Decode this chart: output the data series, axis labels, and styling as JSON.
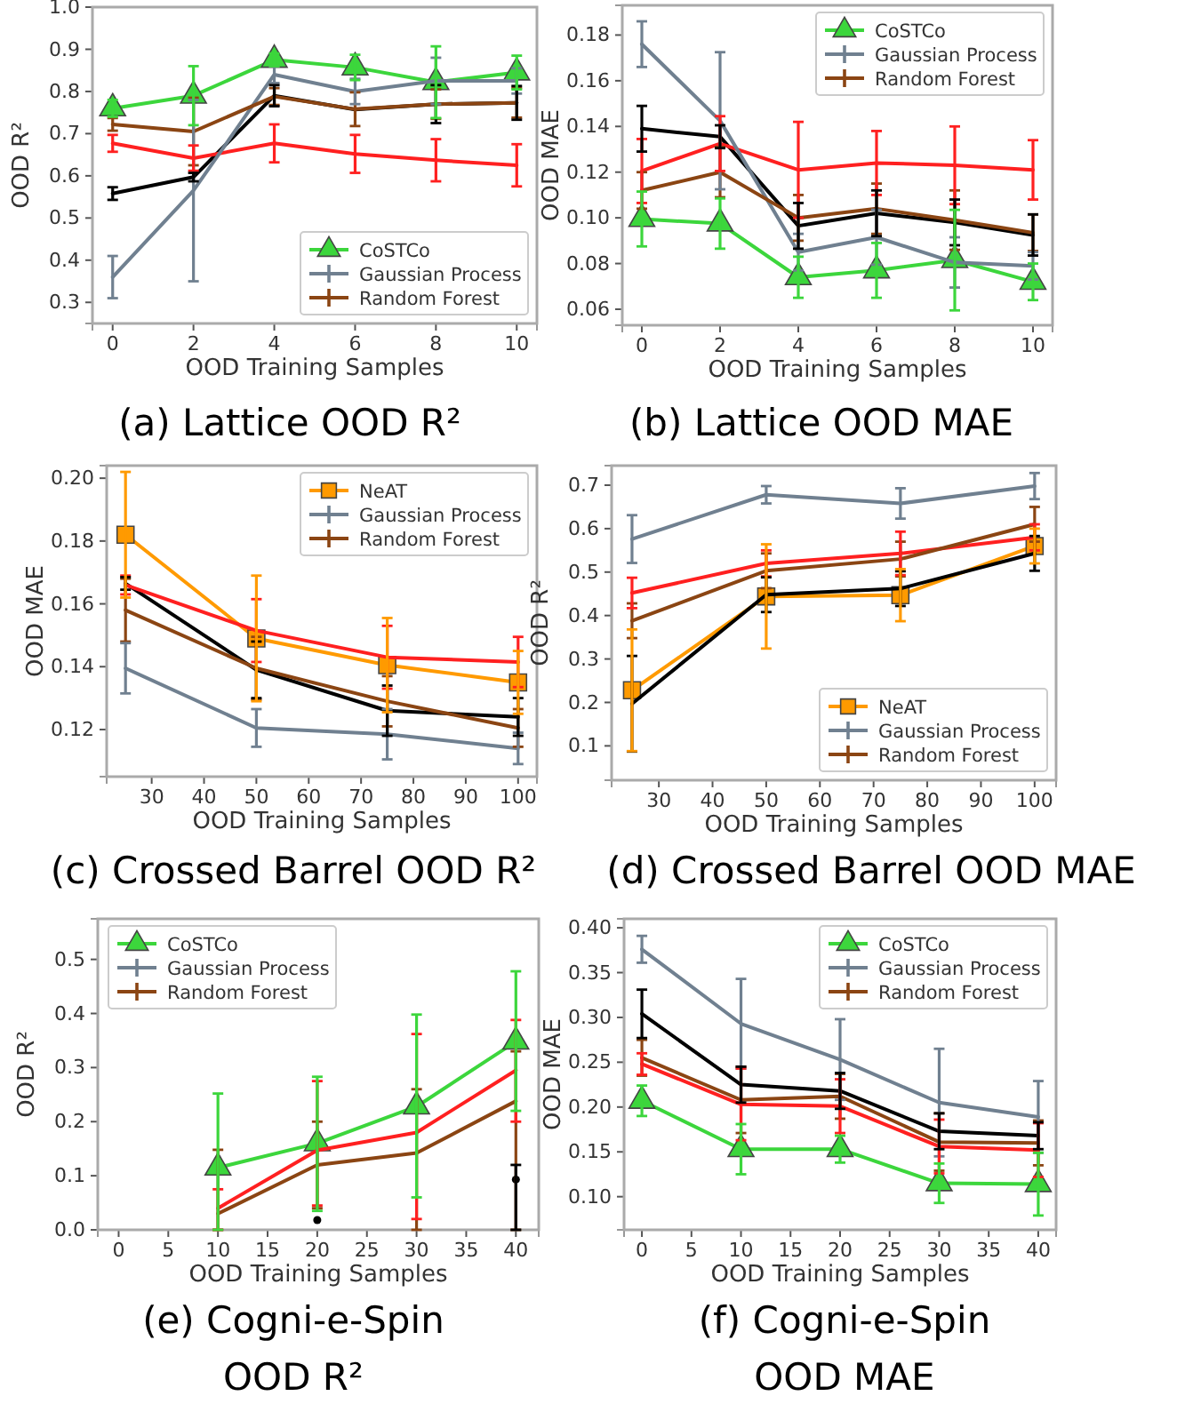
{
  "chart_data": [
    {
      "type": "line",
      "title": "(a) Lattice OOD R²",
      "xlabel": "OOD Training Samples",
      "ylabel": "OOD R²",
      "x": [
        0,
        2,
        4,
        6,
        8,
        10
      ],
      "xlim": [
        -0.5,
        10.5
      ],
      "xticks": [
        0,
        2,
        4,
        6,
        8,
        10
      ],
      "ylim": [
        0.25,
        1.0
      ],
      "yticks": [
        {
          "value": 0.3,
          "label": "0.3"
        },
        {
          "value": 0.4,
          "label": "0.4"
        },
        {
          "value": 0.5,
          "label": "0.5"
        },
        {
          "value": 0.6,
          "label": "0.6"
        },
        {
          "value": 0.7,
          "label": "0.7"
        },
        {
          "value": 0.8,
          "label": "0.8"
        },
        {
          "value": 0.9,
          "label": "0.9"
        },
        {
          "value": 1.0,
          "label": "1.0"
        }
      ],
      "legend": "lower right",
      "series": [
        {
          "name": "CoSTCo",
          "color": "#3cd63c",
          "marker": "triangle",
          "values": [
            0.76,
            0.79,
            0.875,
            0.857,
            0.822,
            0.845
          ],
          "errors": [
            0.02,
            0.07,
            0.015,
            0.03,
            0.085,
            0.04
          ]
        },
        {
          "color": "#000000",
          "marker": "none",
          "values": [
            0.558,
            0.597,
            0.79,
            0.757,
            0.77,
            0.773
          ],
          "errors": [
            0.015,
            0.01,
            0.025,
            null,
            0.045,
            0.04
          ]
        },
        {
          "color": "#ff2020",
          "marker": "none",
          "values": [
            0.677,
            0.642,
            0.677,
            0.652,
            0.637,
            0.625
          ],
          "errors": [
            0.02,
            0.03,
            0.045,
            0.045,
            0.05,
            0.05
          ]
        },
        {
          "name": "Gaussian Process",
          "color": "#708090",
          "marker": "none",
          "values": [
            0.36,
            0.565,
            0.84,
            0.8,
            0.825,
            0.825
          ],
          "errors": [
            0.05,
            0.215,
            0.02,
            0.03,
            0.055,
            0.03
          ]
        },
        {
          "name": "Random Forest",
          "color": "#8b4513",
          "marker": "none",
          "values": [
            0.722,
            0.705,
            0.788,
            0.758,
            0.77,
            0.773
          ],
          "errors": [
            0.015,
            0.08,
            0.02,
            0.04,
            0.035,
            0.035
          ]
        }
      ]
    },
    {
      "type": "line",
      "title": "(b) Lattice OOD MAE",
      "xlabel": "OOD Training Samples",
      "ylabel": "OOD MAE",
      "x": [
        0,
        2,
        4,
        6,
        8,
        10
      ],
      "xlim": [
        -0.5,
        10.5
      ],
      "xticks": [
        0,
        2,
        4,
        6,
        8,
        10
      ],
      "ylim": [
        0.053,
        0.193
      ],
      "yticks": [
        {
          "value": 0.06,
          "label": "0.06"
        },
        {
          "value": 0.08,
          "label": "0.08"
        },
        {
          "value": 0.1,
          "label": "0.10"
        },
        {
          "value": 0.12,
          "label": "0.12"
        },
        {
          "value": 0.14,
          "label": "0.14"
        },
        {
          "value": 0.16,
          "label": "0.16"
        },
        {
          "value": 0.18,
          "label": "0.18"
        }
      ],
      "legend": "top right",
      "series": [
        {
          "name": "CoSTCo",
          "color": "#3cd63c",
          "marker": "triangle",
          "values": [
            0.0995,
            0.0975,
            0.074,
            0.077,
            0.0815,
            0.072
          ],
          "errors": [
            0.012,
            0.011,
            0.009,
            0.012,
            0.022,
            0.008
          ]
        },
        {
          "color": "#000000",
          "marker": "none",
          "values": [
            0.139,
            0.1355,
            0.0965,
            0.102,
            0.098,
            0.0925
          ],
          "errors": [
            0.01,
            0.005,
            0.01,
            0.01,
            0.01,
            0.009
          ]
        },
        {
          "color": "#ff2020",
          "marker": "none",
          "values": [
            0.1205,
            0.1325,
            0.121,
            0.124,
            0.123,
            0.121
          ],
          "errors": [
            0.014,
            0.012,
            0.021,
            0.014,
            0.017,
            0.013
          ]
        },
        {
          "name": "Gaussian Process",
          "color": "#708090",
          "marker": "none",
          "values": [
            0.176,
            0.1425,
            0.085,
            0.0915,
            0.0805,
            0.079
          ],
          "errors": [
            0.01,
            0.03,
            0.008,
            0.012,
            0.011,
            0.006
          ]
        },
        {
          "name": "Random Forest",
          "color": "#8b4513",
          "marker": "none",
          "values": [
            0.112,
            0.12,
            0.1,
            0.104,
            0.099,
            0.0935
          ],
          "errors": [
            0.008,
            0.011,
            0.01,
            0.011,
            0.013,
            0.008
          ]
        }
      ]
    },
    {
      "type": "line",
      "title": "(c) Crossed Barrel OOD R²",
      "xlabel": "OOD Training Samples",
      "ylabel": "OOD MAE",
      "x": [
        25,
        50,
        75,
        100
      ],
      "xlim": [
        21.4,
        103.6
      ],
      "xticks": [
        30,
        40,
        50,
        60,
        70,
        80,
        90,
        100
      ],
      "ylim": [
        0.105,
        0.204
      ],
      "yticks": [
        {
          "value": 0.12,
          "label": "0.12"
        },
        {
          "value": 0.14,
          "label": "0.14"
        },
        {
          "value": 0.16,
          "label": "0.16"
        },
        {
          "value": 0.18,
          "label": "0.18"
        },
        {
          "value": 0.2,
          "label": "0.20"
        }
      ],
      "legend": "top right",
      "series": [
        {
          "name": "NeAT",
          "color": "#ff9a00",
          "marker": "square",
          "values": [
            0.182,
            0.149,
            0.1405,
            0.135
          ],
          "errors": [
            0.02,
            0.02,
            0.015,
            0.01
          ]
        },
        {
          "color": "#000000",
          "marker": "none",
          "values": [
            0.1665,
            0.139,
            0.126,
            0.124
          ],
          "errors": [
            0.002,
            0.009,
            0.008,
            0.006
          ]
        },
        {
          "color": "#ff2020",
          "marker": "none",
          "values": [
            0.166,
            0.1515,
            0.143,
            0.1415
          ],
          "errors": [
            0.003,
            0.01,
            0.01,
            0.008
          ]
        },
        {
          "name": "Gaussian Process",
          "color": "#708090",
          "marker": "none",
          "values": [
            0.1395,
            0.1205,
            0.1185,
            0.114
          ],
          "errors": [
            0.008,
            0.006,
            0.008,
            0.005
          ]
        },
        {
          "name": "Random Forest",
          "color": "#8b4513",
          "marker": "none",
          "values": [
            0.158,
            0.1395,
            0.129,
            0.1205
          ],
          "errors": [
            0.01,
            0.01,
            0.008,
            0.006
          ]
        }
      ]
    },
    {
      "type": "line",
      "title": "(d) Crossed Barrel OOD MAE",
      "xlabel": "OOD Training Samples",
      "ylabel": "OOD R²",
      "x": [
        25,
        50,
        75,
        100
      ],
      "xlim": [
        21.2,
        104
      ],
      "xticks": [
        30,
        40,
        50,
        60,
        70,
        80,
        90,
        100
      ],
      "ylim": [
        0.021,
        0.745
      ],
      "yticks": [
        {
          "value": 0.1,
          "label": "0.1"
        },
        {
          "value": 0.2,
          "label": "0.2"
        },
        {
          "value": 0.3,
          "label": "0.3"
        },
        {
          "value": 0.4,
          "label": "0.4"
        },
        {
          "value": 0.5,
          "label": "0.5"
        },
        {
          "value": 0.6,
          "label": "0.6"
        },
        {
          "value": 0.7,
          "label": "0.7"
        }
      ],
      "legend": "bottom right",
      "series": [
        {
          "name": "NeAT",
          "color": "#ff9a00",
          "marker": "square",
          "values": [
            0.228,
            0.444,
            0.447,
            0.56
          ],
          "errors": [
            0.14,
            0.12,
            0.06,
            0.04
          ]
        },
        {
          "color": "#000000",
          "marker": "none",
          "values": [
            0.197,
            0.448,
            0.462,
            0.543
          ],
          "errors": [
            0.11,
            0.04,
            0.04,
            0.04
          ]
        },
        {
          "color": "#ff2020",
          "marker": "none",
          "values": [
            0.452,
            0.52,
            0.543,
            0.58
          ],
          "errors": [
            0.035,
            0.03,
            0.05,
            0.03
          ]
        },
        {
          "name": "Gaussian Process",
          "color": "#708090",
          "marker": "none",
          "values": [
            0.576,
            0.678,
            0.658,
            0.698
          ],
          "errors": [
            0.055,
            0.02,
            0.035,
            0.03
          ]
        },
        {
          "name": "Random Forest",
          "color": "#8b4513",
          "marker": "none",
          "values": [
            0.388,
            0.503,
            0.53,
            0.61
          ],
          "errors": [
            0.04,
            0.04,
            0.04,
            0.04
          ]
        }
      ]
    },
    {
      "type": "line",
      "title": "(e) Cogni-e-Spin\nOOD R²",
      "xlabel": "OOD Training Samples",
      "ylabel": "OOD R²",
      "x": [
        10,
        20,
        30,
        40
      ],
      "xlim": [
        -2.1,
        42.3
      ],
      "xticks": [
        0,
        5,
        10,
        15,
        20,
        25,
        30,
        35,
        40
      ],
      "ylim": [
        0,
        0.575
      ],
      "yticks": [
        {
          "value": 0,
          "label": "0.0"
        },
        {
          "value": 0.1,
          "label": "0.1"
        },
        {
          "value": 0.2,
          "label": "0.2"
        },
        {
          "value": 0.3,
          "label": "0.3"
        },
        {
          "value": 0.4,
          "label": "0.4"
        },
        {
          "value": 0.5,
          "label": "0.5"
        }
      ],
      "legend": "top left",
      "series": [
        {
          "name": "CoSTCo",
          "color": "#3cd63c",
          "marker": "triangle",
          "values": [
            0.115,
            0.16,
            0.228,
            0.348
          ],
          "errors": [
            [
              0,
              0.252
            ],
            [
              0.035,
              0.283
            ],
            [
              0.06,
              0.398
            ],
            [
              0.22,
              0.478
            ]
          ]
        },
        {
          "color": "#000000",
          "marker": "circle",
          "values": [
            null,
            0.018,
            null,
            0.093
          ],
          "errors": [
            null,
            null,
            null,
            [
              0,
              0.12
            ]
          ]
        },
        {
          "color": "#ff2020",
          "marker": "none",
          "values": [
            0.04,
            0.147,
            0.18,
            0.295
          ],
          "errors": [
            [
              0,
              0.075
            ],
            [
              0.045,
              0.275
            ],
            [
              0.02,
              0.362
            ],
            [
              0.2,
              0.388
            ]
          ]
        },
        {
          "name": "Gaussian Process",
          "color": "#708090",
          "marker": "none",
          "values": [
            null,
            null,
            null,
            null
          ]
        },
        {
          "name": "Random Forest",
          "color": "#8b4513",
          "marker": "none",
          "values": [
            0.03,
            0.12,
            0.142,
            0.238
          ],
          "errors": [
            [
              0,
              0.148
            ],
            [
              0.04,
              0.2
            ],
            [
              0,
              0.26
            ],
            [
              0,
              0.33
            ]
          ]
        }
      ]
    },
    {
      "type": "line",
      "title": "(f) Cogni-e-Spin\nOOD MAE",
      "xlabel": "OOD Training Samples",
      "ylabel": "OOD MAE",
      "x": [
        0,
        10,
        20,
        30,
        40
      ],
      "xlim": [
        -1.8,
        41.8
      ],
      "xticks": [
        0,
        5,
        10,
        15,
        20,
        25,
        30,
        35,
        40
      ],
      "ylim": [
        0.063,
        0.41
      ],
      "yticks": [
        {
          "value": 0.1,
          "label": "0.10"
        },
        {
          "value": 0.15,
          "label": "0.15"
        },
        {
          "value": 0.2,
          "label": "0.20"
        },
        {
          "value": 0.25,
          "label": "0.25"
        },
        {
          "value": 0.3,
          "label": "0.30"
        },
        {
          "value": 0.35,
          "label": "0.35"
        },
        {
          "value": 0.4,
          "label": "0.40"
        }
      ],
      "legend": "top right",
      "series": [
        {
          "name": "CoSTCo",
          "color": "#3cd63c",
          "marker": "triangle",
          "values": [
            0.207,
            0.153,
            0.153,
            0.115,
            0.114
          ],
          "errors": [
            0.017,
            0.028,
            0.015,
            0.022,
            0.035
          ]
        },
        {
          "color": "#000000",
          "marker": "none",
          "values": [
            0.304,
            0.225,
            0.218,
            0.173,
            0.168
          ],
          "errors": [
            0.027,
            0.02,
            0.02,
            0.02,
            0.015
          ]
        },
        {
          "color": "#ff2020",
          "marker": "none",
          "values": [
            0.248,
            0.203,
            0.201,
            0.156,
            0.152
          ],
          "errors": [
            0.012,
            0.04,
            0.03,
            0.03,
            0.03
          ]
        },
        {
          "name": "Gaussian Process",
          "color": "#708090",
          "marker": "none",
          "values": [
            0.376,
            0.293,
            0.253,
            0.205,
            0.189
          ],
          "errors": [
            0.015,
            0.05,
            0.045,
            0.06,
            0.04
          ]
        },
        {
          "name": "Random Forest",
          "color": "#8b4513",
          "marker": "none",
          "values": [
            0.255,
            0.208,
            0.212,
            0.161,
            0.16
          ],
          "errors": [
            0.02,
            0.037,
            0.025,
            0.032,
            0.025
          ]
        }
      ]
    }
  ]
}
